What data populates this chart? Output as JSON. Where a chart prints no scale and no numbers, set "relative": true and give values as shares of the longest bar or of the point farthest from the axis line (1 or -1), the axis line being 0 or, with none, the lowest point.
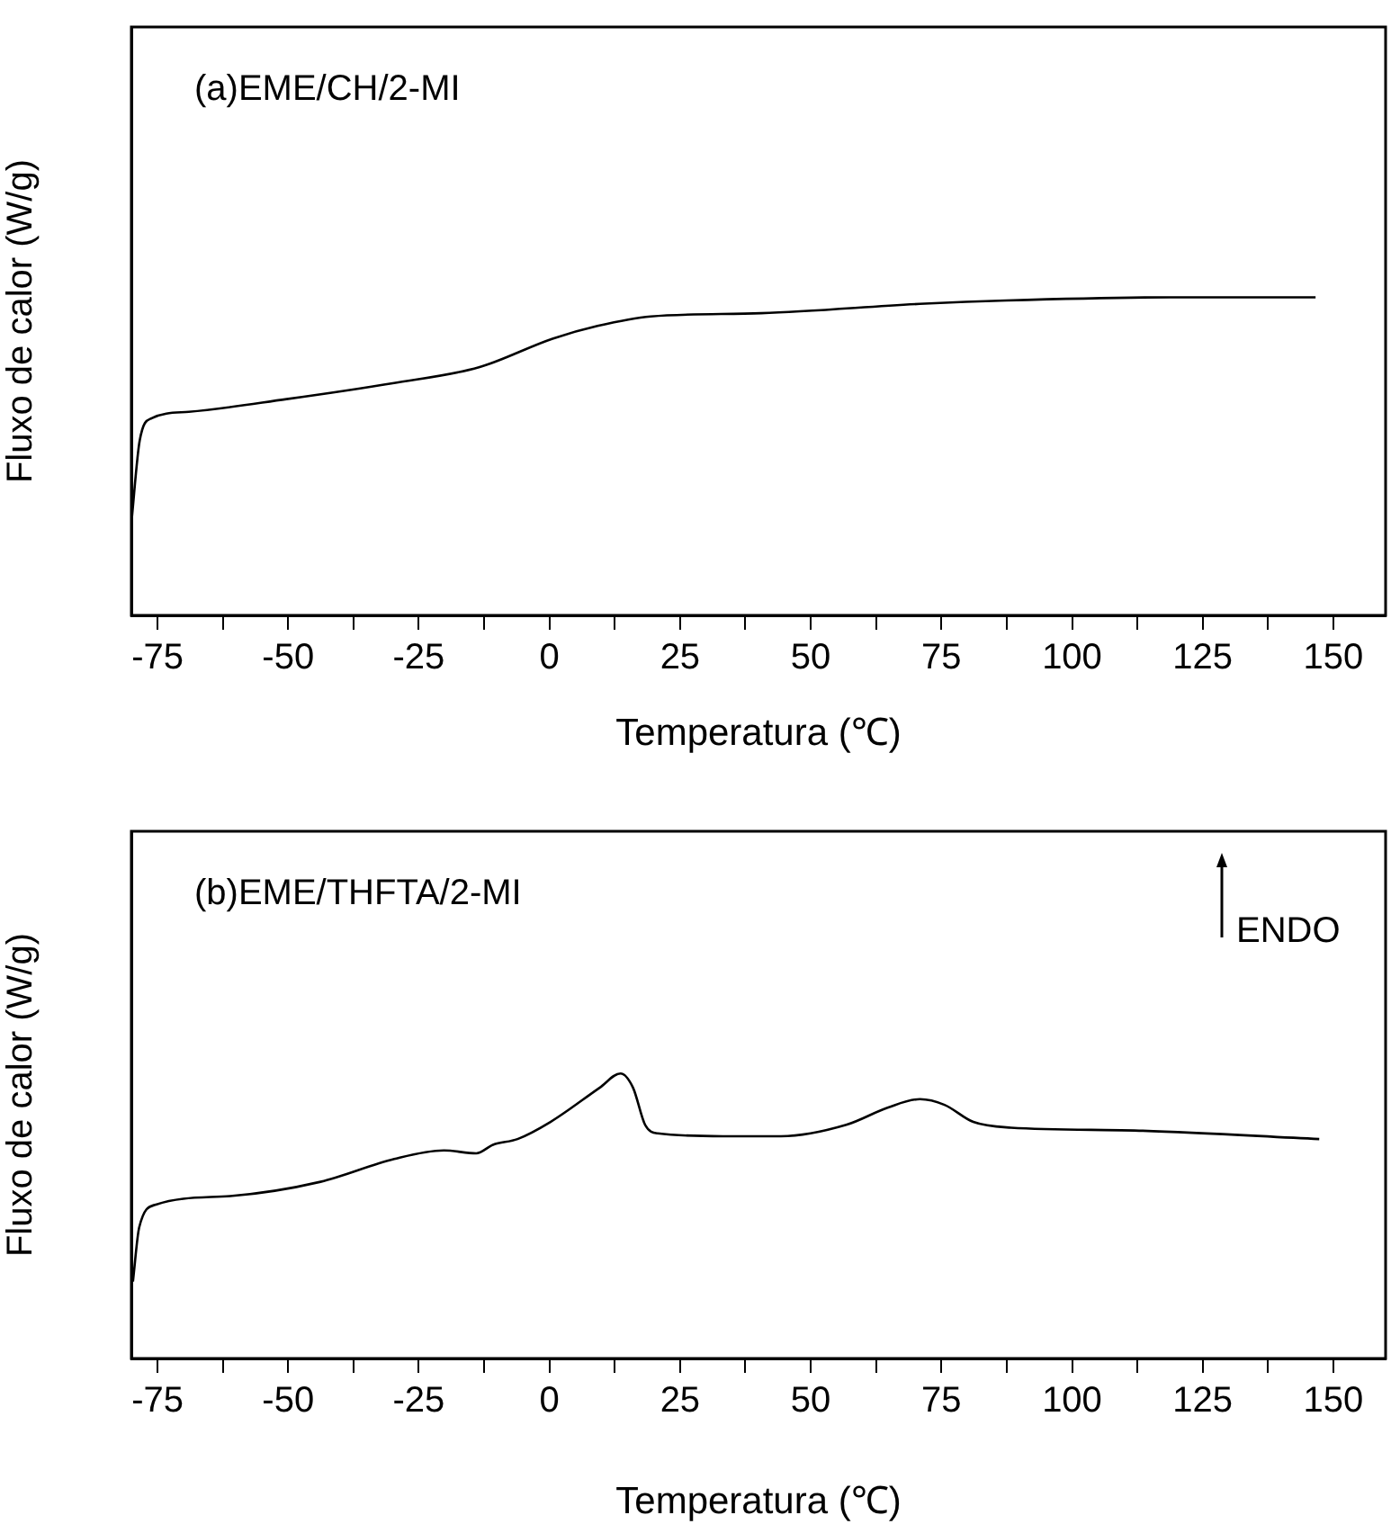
{
  "chart_data": [
    {
      "type": "line",
      "xlabel": "Temperatura (℃)",
      "ylabel": "Fluxo de calor (W/g)",
      "relative": true,
      "annotations": [
        "(a)EME/CH/2-MI"
      ],
      "xlim": [
        -80,
        160
      ],
      "xticks": [
        -75,
        {
          "value": -62.5,
          "label": null
        },
        -50,
        {
          "value": -37.5,
          "label": null
        },
        -25,
        {
          "value": -12.5,
          "label": null
        },
        0,
        {
          "value": 12.5,
          "label": null
        },
        25,
        {
          "value": 37.5,
          "label": null
        },
        50,
        {
          "value": 62.5,
          "label": null
        },
        75,
        {
          "value": 87.5,
          "label": null
        },
        100,
        {
          "value": 112.5,
          "label": null
        },
        125,
        {
          "value": 137.5,
          "label": null
        },
        150
      ],
      "tick_labels": "x",
      "grid": false,
      "legend": false,
      "series": [
        {
          "color": "#000000",
          "x": [
            -80,
            -78.4,
            -76.1,
            -69,
            -50.3,
            -30,
            -13.5,
            0.6,
            9.2,
            19.4,
            40.5,
            71.8,
            87.4,
            118.7,
            140.6,
            146.6
          ],
          "values": [
            0.29,
            0.55,
            0.62,
            0.64,
            0.68,
            0.73,
            0.78,
            0.87,
            0.91,
            0.94,
            0.95,
            0.98,
            0.99,
            1.0,
            1.0,
            1.0
          ]
        }
      ]
    },
    {
      "type": "line",
      "xlabel": "Temperatura (℃)",
      "ylabel": "Fluxo de calor (W/g)",
      "relative": true,
      "annotations": [
        "(b)EME/THFTA/2-MI",
        "ENDO"
      ],
      "xlim": [
        -80,
        160
      ],
      "xticks": [
        -75,
        {
          "value": -62.5,
          "label": null
        },
        -50,
        {
          "value": -37.5,
          "label": null
        },
        -25,
        {
          "value": -12.5,
          "label": null
        },
        0,
        {
          "value": 12.5,
          "label": null
        },
        25,
        {
          "value": 37.5,
          "label": null
        },
        50,
        {
          "value": 62.5,
          "label": null
        },
        75,
        {
          "value": 87.5,
          "label": null
        },
        100,
        {
          "value": 112.5,
          "label": null
        },
        125,
        {
          "value": 137.5,
          "label": null
        },
        150
      ],
      "tick_labels": "x",
      "grid": false,
      "legend": false,
      "series": [
        {
          "color": "#000000",
          "x": [
            -79.7,
            -78.5,
            -75.3,
            -61.1,
            -43.8,
            -29.7,
            -20.2,
            -14,
            -10.8,
            -6.1,
            0.2,
            9.6,
            13.6,
            16,
            18.3,
            20.7,
            33.2,
            44.3,
            56.8,
            64.7,
            70.9,
            75.6,
            81.1,
            88.3,
            111.9,
            147.3
          ],
          "values": [
            0.27,
            0.46,
            0.54,
            0.57,
            0.62,
            0.7,
            0.73,
            0.72,
            0.75,
            0.77,
            0.83,
            0.95,
            1.0,
            0.95,
            0.82,
            0.79,
            0.78,
            0.78,
            0.82,
            0.88,
            0.91,
            0.89,
            0.83,
            0.81,
            0.8,
            0.77
          ]
        }
      ]
    }
  ]
}
